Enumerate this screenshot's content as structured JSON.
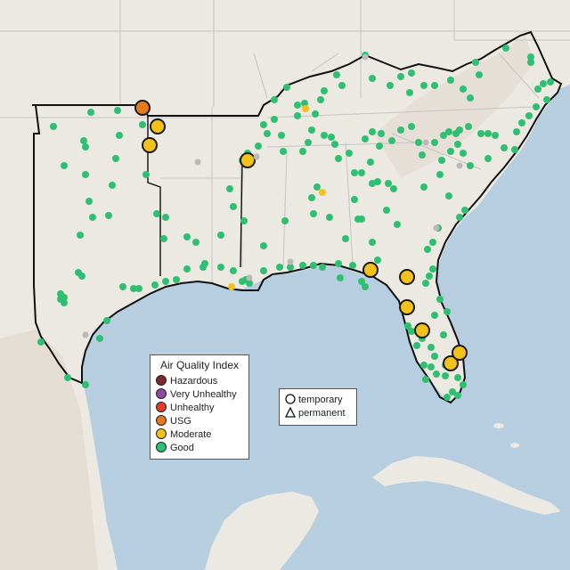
{
  "colors": {
    "ocean": "#b7cde0",
    "land": "#ece8e2",
    "land_relief": "#ddd6cc",
    "state_border": "#c4c4c4",
    "region_border": "#111111",
    "marker_outline": "#1a1a1a"
  },
  "aqi_legend": {
    "title": "Air Quality Index",
    "categories": [
      {
        "label": "Hazardous",
        "color": "#7a2c2c"
      },
      {
        "label": "Very Unhealthy",
        "color": "#8e4ba0"
      },
      {
        "label": "Unhealthy",
        "color": "#e0402a"
      },
      {
        "label": "USG",
        "color": "#e37a1e"
      },
      {
        "label": "Moderate",
        "color": "#f2c21a"
      },
      {
        "label": "Good",
        "color": "#2fbf71"
      }
    ]
  },
  "monitor_legend": {
    "items": [
      {
        "label": "temporary",
        "shape": "circle-icon"
      },
      {
        "label": "permanent",
        "shape": "triangle-icon"
      }
    ]
  }
}
